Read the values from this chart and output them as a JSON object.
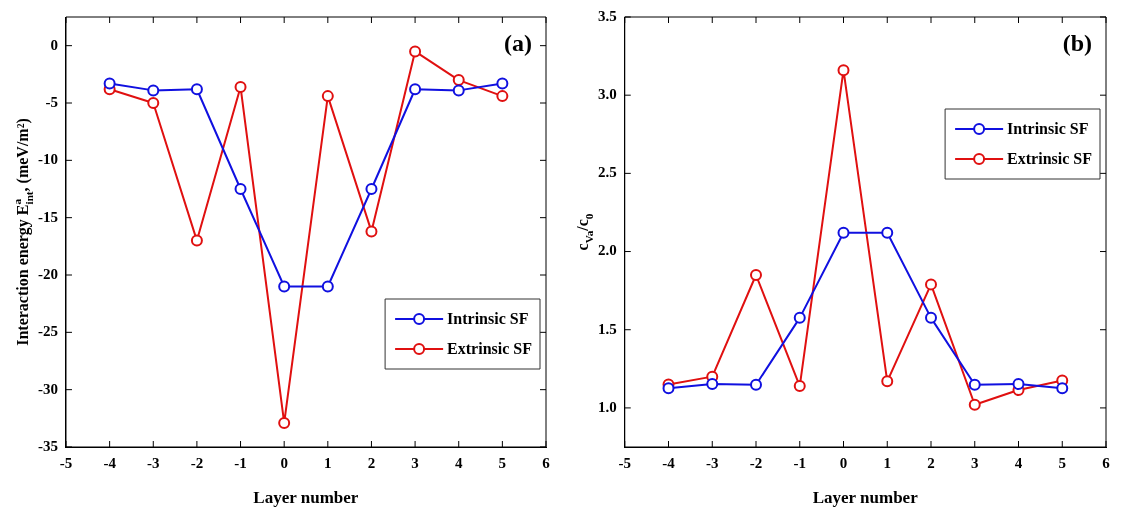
{
  "chart_data": [
    {
      "type": "line",
      "xlabel": "Layer number",
      "ylabel": "Interaction energy E$^{a}$$_{int}$, (meV/m²)",
      "annotations": [
        "(a)"
      ],
      "x": [
        -4,
        -3,
        -2,
        -1,
        0,
        1,
        2,
        3,
        4,
        5
      ],
      "series": [
        {
          "name": "Intrinsic SF",
          "color": "#1010e0",
          "values": [
            -3.3,
            -3.9,
            -3.8,
            -12.5,
            -21.0,
            -21.0,
            -12.5,
            -3.8,
            -3.9,
            -3.3
          ]
        },
        {
          "name": "Extrinsic SF",
          "color": "#e01010",
          "values": [
            -3.8,
            -5.0,
            -17.0,
            -3.6,
            -32.9,
            -4.4,
            -16.2,
            -0.5,
            -3.0,
            -4.4
          ]
        }
      ],
      "xlim": [
        -5,
        6
      ],
      "xticks": [
        -5,
        -4,
        -3,
        -2,
        -1,
        0,
        1,
        2,
        3,
        4,
        5,
        6
      ],
      "ylim": [
        -35,
        2.5
      ],
      "yticks": [
        -35,
        -30,
        -25,
        -20,
        -15,
        -10,
        -5,
        0
      ],
      "grid": false,
      "legend": "bottom right",
      "marker": "circle",
      "line_style": "solid"
    },
    {
      "type": "line",
      "xlabel": "Layer number",
      "ylabel": "c$_{Va}$/c$_{0}$",
      "annotations": [
        "(b)"
      ],
      "x": [
        -4,
        -3,
        -2,
        -1,
        0,
        1,
        2,
        3,
        4,
        5
      ],
      "series": [
        {
          "name": "Intrinsic SF",
          "color": "#1010e0",
          "values": [
            1.126,
            1.153,
            1.148,
            1.576,
            2.12,
            2.12,
            1.576,
            1.148,
            1.153,
            1.126
          ]
        },
        {
          "name": "Extrinsic SF",
          "color": "#e01010",
          "values": [
            1.15,
            1.2,
            1.85,
            1.14,
            3.16,
            1.17,
            1.79,
            1.02,
            1.115,
            1.175
          ]
        }
      ],
      "xlim": [
        -5,
        6
      ],
      "xticks": [
        -5,
        -4,
        -3,
        -2,
        -1,
        0,
        1,
        2,
        3,
        4,
        5,
        6
      ],
      "ylim": [
        0.75,
        3.5
      ],
      "yticks": [
        {
          "value": 1,
          "label": "1.0"
        },
        {
          "value": 1.5,
          "label": "1.5"
        },
        {
          "value": 2,
          "label": "2.0"
        },
        {
          "value": 2.5,
          "label": "2.5"
        },
        {
          "value": 3,
          "label": "3.0"
        },
        {
          "value": 3.5,
          "label": "3.5"
        }
      ],
      "grid": false,
      "legend": "top right",
      "marker": "circle",
      "line_style": "solid"
    }
  ]
}
